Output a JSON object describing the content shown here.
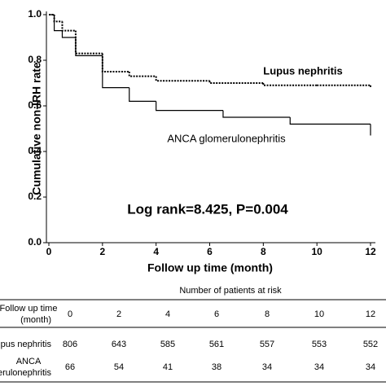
{
  "chart_data": {
    "type": "step",
    "y_label": "Cumulative non-IRH rate",
    "x_label": "Follow up time (month)",
    "annotations": [
      "Lupus nephritis",
      "ANCA glomerulonephritis",
      "Log rank=8.425, P=0.004"
    ],
    "xlim": [
      0,
      12
    ],
    "xticks": [
      0,
      2,
      4,
      6,
      8,
      10,
      12
    ],
    "ylim": [
      0,
      1
    ],
    "yticks": [
      {
        "value": 0,
        "label": "0.0"
      },
      0.2,
      0.4,
      0.6,
      0.8,
      {
        "value": 1,
        "label": "1.0"
      }
    ],
    "series": [
      {
        "name": "Lupus nephritis",
        "color": "#000000",
        "dashed": true,
        "x": [
          0,
          0.2,
          0.5,
          1,
          2,
          3,
          4,
          6,
          8,
          10,
          12
        ],
        "values": [
          1,
          0.97,
          0.93,
          0.83,
          0.75,
          0.73,
          0.71,
          0.7,
          0.69,
          0.69,
          0.68
        ]
      },
      {
        "name": "ANCA glomerulonephritis",
        "color": "#000000",
        "dashed": false,
        "x": [
          0,
          0.2,
          0.5,
          1,
          2,
          3,
          4,
          6.5,
          9,
          12
        ],
        "values": [
          1,
          0.93,
          0.9,
          0.82,
          0.68,
          0.62,
          0.58,
          0.55,
          0.52,
          0.47
        ]
      }
    ]
  },
  "table": {
    "title": "Number of patients at risk",
    "header": {
      "label_lines": [
        "Follow up time",
        "(month)"
      ],
      "cells": [
        "0",
        "2",
        "4",
        "6",
        "8",
        "10",
        "12"
      ]
    },
    "rows": [
      {
        "label_lines": [
          "Lupus nephritis"
        ],
        "cells": [
          "806",
          "643",
          "585",
          "561",
          "557",
          "553",
          "552"
        ]
      },
      {
        "label_lines": [
          "ANCA",
          "glomerulonephritis"
        ],
        "cells": [
          "66",
          "54",
          "41",
          "38",
          "34",
          "34",
          "34"
        ]
      }
    ]
  }
}
